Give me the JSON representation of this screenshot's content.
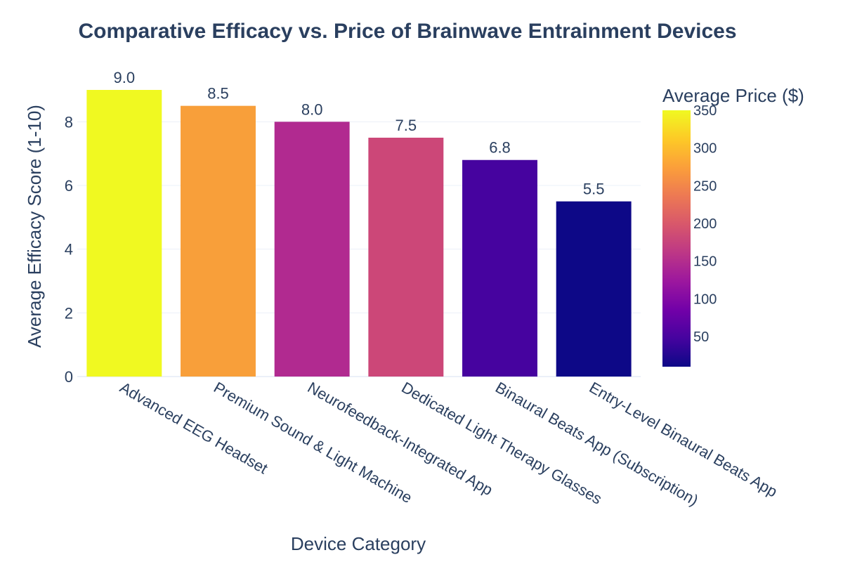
{
  "chart_data": {
    "type": "bar",
    "title": "Comparative Efficacy vs. Price of Brainwave Entrainment Devices",
    "xlabel": "Device Category",
    "ylabel": "Average Efficacy Score (1-10)",
    "ylim": [
      0,
      9
    ],
    "yticks": [
      0,
      2,
      4,
      6,
      8
    ],
    "grid": true,
    "categories": [
      "Advanced EEG Headset",
      "Premium Sound & Light Machine",
      "Neurofeedback-Integrated App",
      "Dedicated Light Therapy Glasses",
      "Binaural Beats App (Subscription)",
      "Entry-Level Binaural Beats App"
    ],
    "values": [
      9.0,
      8.5,
      8.0,
      7.5,
      6.8,
      5.5
    ],
    "value_labels": [
      "9.0",
      "8.5",
      "8.0",
      "7.5",
      "6.8",
      "5.5"
    ],
    "colors": [
      "#f0f921",
      "#f89f3a",
      "#b12a90",
      "#cc4778",
      "#46039f",
      "#0d0887"
    ],
    "prices": [
      350,
      280,
      130,
      170,
      30,
      10
    ],
    "colorbar": {
      "title": "Average Price ($)",
      "range": [
        10,
        350
      ],
      "ticks": [
        50,
        100,
        150,
        200,
        250,
        300,
        350
      ],
      "colorscale": [
        "#0d0887",
        "#46039f",
        "#7201a8",
        "#9c179e",
        "#bd3786",
        "#d8576b",
        "#ed7953",
        "#fb9f3a",
        "#fdca26",
        "#f0f921"
      ],
      "position": "right"
    }
  }
}
